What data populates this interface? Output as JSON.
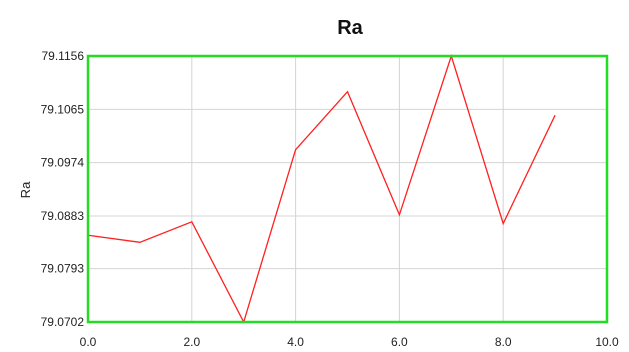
{
  "chart_data": {
    "type": "line",
    "title": "Ra",
    "xlabel": "",
    "ylabel": "Ra",
    "xlim": [
      0,
      10
    ],
    "ylim": [
      79.0702,
      79.1156
    ],
    "x_ticks": [
      "0.0",
      "2.0",
      "4.0",
      "6.0",
      "8.0",
      "10.0"
    ],
    "x_tick_values": [
      0,
      2,
      4,
      6,
      8,
      10
    ],
    "y_ticks": [
      "79.1156",
      "79.1065",
      "79.0974",
      "79.0883",
      "79.0793",
      "79.0702"
    ],
    "y_tick_values": [
      79.1156,
      79.1065,
      79.0974,
      79.0883,
      79.0793,
      79.0702
    ],
    "grid": true,
    "series": [
      {
        "x": [
          0,
          1,
          2,
          3,
          4,
          5,
          6,
          7,
          8,
          9
        ],
        "y": [
          79.085,
          79.0838,
          79.0873,
          79.0702,
          79.0996,
          79.1095,
          79.0885,
          79.1156,
          79.087,
          79.1055
        ],
        "color": "#ff2020"
      }
    ],
    "frame_color": "#22dd22"
  }
}
